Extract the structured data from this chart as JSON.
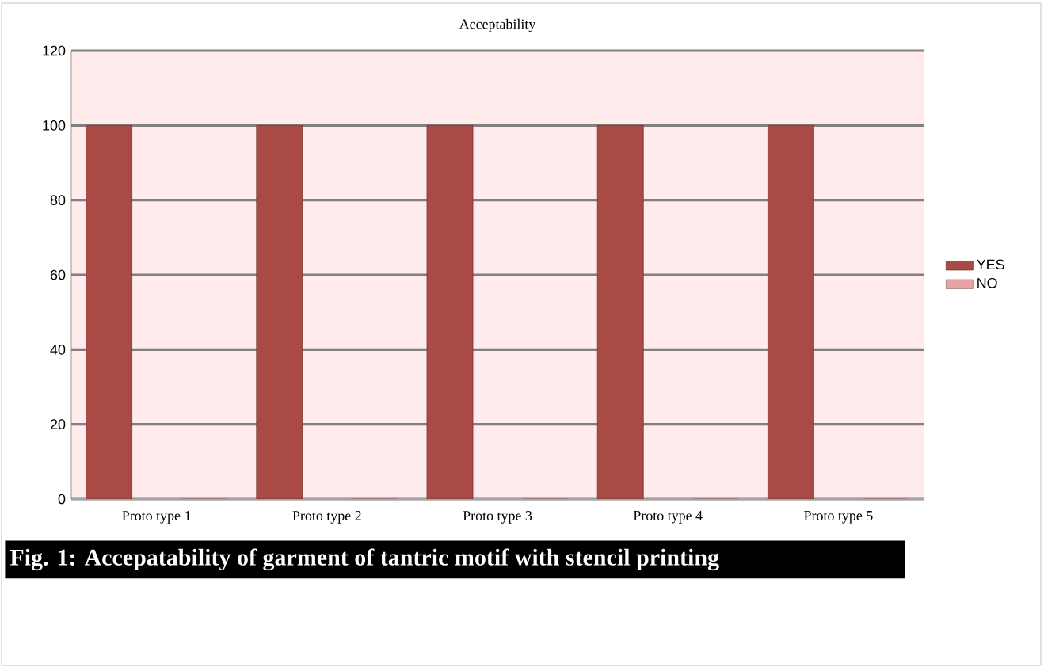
{
  "chart_data": {
    "type": "bar",
    "title": "Acceptability",
    "categories": [
      "Proto type 1",
      "Proto type 2",
      "Proto type 3",
      "Proto type 4",
      "Proto type 5"
    ],
    "series": [
      {
        "name": "YES",
        "color": "#a94a47",
        "values": [
          100,
          100,
          100,
          100,
          100
        ]
      },
      {
        "name": "NO",
        "color": "#e6a3a1",
        "values": [
          0,
          0,
          0,
          0,
          0
        ]
      }
    ],
    "ylim": [
      0,
      120
    ],
    "yticks": [
      0,
      20,
      40,
      60,
      80,
      100,
      120
    ],
    "grid": "y",
    "legend": "right",
    "annotations": [
      "Fig. 1: Accepatability of garment of tantric motif with stencil printing"
    ]
  }
}
